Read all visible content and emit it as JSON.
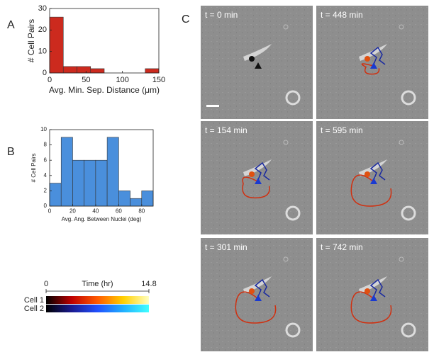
{
  "panel_labels": [
    "A",
    "B",
    "C"
  ],
  "chart_data": [
    {
      "type": "histogram",
      "bins": [
        0,
        18.75,
        37.5,
        56.25,
        75,
        93.75,
        112.5,
        131.25,
        150
      ],
      "values": [
        26,
        3,
        3,
        2,
        0,
        0,
        0,
        2
      ],
      "color": "#cc2a1e",
      "xlim": [
        0,
        150
      ],
      "ylim": [
        0,
        30
      ],
      "xticks": [
        0,
        50,
        100,
        150
      ],
      "yticks": [
        0,
        10,
        20,
        30
      ],
      "xlabel": "Avg. Min. Sep. Distance (μm)",
      "ylabel": "# Cell Pairs"
    },
    {
      "type": "histogram",
      "bins": [
        0,
        10,
        20,
        30,
        40,
        50,
        60,
        70,
        80,
        90
      ],
      "values": [
        3,
        9,
        6,
        6,
        6,
        9,
        2,
        1,
        2
      ],
      "color": "#4a8fdc",
      "xlim": [
        0,
        90
      ],
      "ylim": [
        0,
        10
      ],
      "xticks": [
        0,
        20,
        40,
        60,
        80
      ],
      "yticks": [
        0,
        2,
        4,
        6,
        8,
        10
      ],
      "xlabel": "Avg. Ang. Between Nuclei (deg)",
      "ylabel": "# Cell Pairs"
    }
  ],
  "colorbar": {
    "label": "Time (hr)",
    "lim": [
      0,
      14.8
    ],
    "rows": [
      {
        "name": "Cell 1",
        "colors": [
          "#000000",
          "#c00000",
          "#ff5a00",
          "#ffd000",
          "#ffffc0"
        ]
      },
      {
        "name": "Cell 2",
        "colors": [
          "#000000",
          "#1a1a90",
          "#2050ff",
          "#20b0ff",
          "#40ffff"
        ]
      }
    ]
  },
  "panel_c": {
    "frames": [
      "t = 0 min",
      "t = 448 min",
      "t = 154 min",
      "t = 595 min",
      "t = 301 min",
      "t = 742 min"
    ]
  }
}
